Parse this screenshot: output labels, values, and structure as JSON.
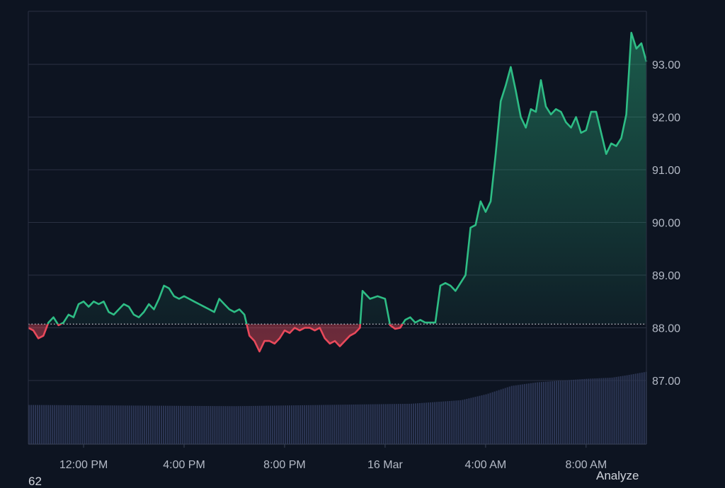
{
  "chart_data": {
    "type": "area",
    "baseline": 88.07,
    "ylim": [
      86.0,
      93.8
    ],
    "y_ticks": [
      "87.00",
      "88.00",
      "89.00",
      "90.00",
      "91.00",
      "92.00",
      "93.00"
    ],
    "y_tick_values": [
      87,
      88,
      89,
      90,
      91,
      92,
      93
    ],
    "x_ticks": [
      "12:00 PM",
      "4:00 PM",
      "8:00 PM",
      "16 Mar",
      "4:00 AM",
      "8:00 AM"
    ],
    "x_tick_hours": [
      2,
      6,
      10,
      14,
      18,
      22
    ],
    "x_range_hours": [
      -0.2,
      24.4
    ],
    "grid": true,
    "price": [
      [
        -0.2,
        88.0
      ],
      [
        0.0,
        87.95
      ],
      [
        0.2,
        87.8
      ],
      [
        0.4,
        87.85
      ],
      [
        0.6,
        88.1
      ],
      [
        0.8,
        88.2
      ],
      [
        1.0,
        88.05
      ],
      [
        1.2,
        88.1
      ],
      [
        1.4,
        88.25
      ],
      [
        1.6,
        88.2
      ],
      [
        1.8,
        88.45
      ],
      [
        2.0,
        88.5
      ],
      [
        2.2,
        88.4
      ],
      [
        2.4,
        88.5
      ],
      [
        2.6,
        88.45
      ],
      [
        2.8,
        88.5
      ],
      [
        3.0,
        88.3
      ],
      [
        3.2,
        88.25
      ],
      [
        3.4,
        88.35
      ],
      [
        3.6,
        88.45
      ],
      [
        3.8,
        88.4
      ],
      [
        4.0,
        88.25
      ],
      [
        4.2,
        88.2
      ],
      [
        4.4,
        88.3
      ],
      [
        4.6,
        88.45
      ],
      [
        4.8,
        88.35
      ],
      [
        5.0,
        88.55
      ],
      [
        5.2,
        88.8
      ],
      [
        5.4,
        88.75
      ],
      [
        5.6,
        88.6
      ],
      [
        5.8,
        88.55
      ],
      [
        6.0,
        88.6
      ],
      [
        6.2,
        88.55
      ],
      [
        6.4,
        88.5
      ],
      [
        6.6,
        88.45
      ],
      [
        6.8,
        88.4
      ],
      [
        7.0,
        88.35
      ],
      [
        7.2,
        88.3
      ],
      [
        7.4,
        88.55
      ],
      [
        7.6,
        88.45
      ],
      [
        7.8,
        88.35
      ],
      [
        8.0,
        88.3
      ],
      [
        8.2,
        88.35
      ],
      [
        8.4,
        88.25
      ],
      [
        8.6,
        87.85
      ],
      [
        8.8,
        87.75
      ],
      [
        9.0,
        87.55
      ],
      [
        9.2,
        87.75
      ],
      [
        9.4,
        87.75
      ],
      [
        9.6,
        87.7
      ],
      [
        9.8,
        87.8
      ],
      [
        10.0,
        87.95
      ],
      [
        10.2,
        87.9
      ],
      [
        10.4,
        88.0
      ],
      [
        10.6,
        87.95
      ],
      [
        10.8,
        88.0
      ],
      [
        11.0,
        88.0
      ],
      [
        11.2,
        87.95
      ],
      [
        11.4,
        88.0
      ],
      [
        11.6,
        87.8
      ],
      [
        11.8,
        87.7
      ],
      [
        12.0,
        87.75
      ],
      [
        12.2,
        87.65
      ],
      [
        12.4,
        87.75
      ],
      [
        12.6,
        87.85
      ],
      [
        12.8,
        87.9
      ],
      [
        13.0,
        88.0
      ],
      [
        13.1,
        88.7
      ],
      [
        13.4,
        88.55
      ],
      [
        13.7,
        88.6
      ],
      [
        14.0,
        88.55
      ],
      [
        14.2,
        88.05
      ],
      [
        14.4,
        87.98
      ],
      [
        14.6,
        88.0
      ],
      [
        14.8,
        88.15
      ],
      [
        15.0,
        88.2
      ],
      [
        15.2,
        88.1
      ],
      [
        15.4,
        88.15
      ],
      [
        15.6,
        88.1
      ],
      [
        15.8,
        88.1
      ],
      [
        16.0,
        88.1
      ],
      [
        16.2,
        88.8
      ],
      [
        16.4,
        88.85
      ],
      [
        16.6,
        88.8
      ],
      [
        16.8,
        88.7
      ],
      [
        17.0,
        88.85
      ],
      [
        17.2,
        89.0
      ],
      [
        17.4,
        89.9
      ],
      [
        17.6,
        89.95
      ],
      [
        17.8,
        90.4
      ],
      [
        18.0,
        90.2
      ],
      [
        18.2,
        90.4
      ],
      [
        18.4,
        91.3
      ],
      [
        18.6,
        92.3
      ],
      [
        18.8,
        92.6
      ],
      [
        19.0,
        92.95
      ],
      [
        19.2,
        92.5
      ],
      [
        19.4,
        92.0
      ],
      [
        19.6,
        91.8
      ],
      [
        19.8,
        92.15
      ],
      [
        20.0,
        92.1
      ],
      [
        20.2,
        92.7
      ],
      [
        20.4,
        92.2
      ],
      [
        20.6,
        92.05
      ],
      [
        20.8,
        92.15
      ],
      [
        21.0,
        92.1
      ],
      [
        21.2,
        91.9
      ],
      [
        21.4,
        91.8
      ],
      [
        21.6,
        92.0
      ],
      [
        21.8,
        91.7
      ],
      [
        22.0,
        91.75
      ],
      [
        22.2,
        92.1
      ],
      [
        22.4,
        92.1
      ],
      [
        22.6,
        91.7
      ],
      [
        22.8,
        91.3
      ],
      [
        23.0,
        91.5
      ],
      [
        23.2,
        91.45
      ],
      [
        23.4,
        91.6
      ],
      [
        23.6,
        92.05
      ],
      [
        23.8,
        93.6
      ],
      [
        24.0,
        93.3
      ],
      [
        24.2,
        93.4
      ],
      [
        24.4,
        93.05
      ]
    ],
    "volume": [
      [
        -0.2,
        0.33
      ],
      [
        8.0,
        0.32
      ],
      [
        15.0,
        0.34
      ],
      [
        17.0,
        0.37
      ],
      [
        18.0,
        0.42
      ],
      [
        19.0,
        0.49
      ],
      [
        20.0,
        0.52
      ],
      [
        22.0,
        0.55
      ],
      [
        23.0,
        0.56
      ],
      [
        23.6,
        0.58
      ],
      [
        24.4,
        0.61
      ]
    ],
    "colors": {
      "up": "#2ebd85",
      "down": "#e8495b",
      "volume": "#2c3654",
      "grid": "#2a3142",
      "axis_text": "#b4bac6"
    }
  },
  "corner": {
    "left": "62",
    "right": "Analyze"
  }
}
